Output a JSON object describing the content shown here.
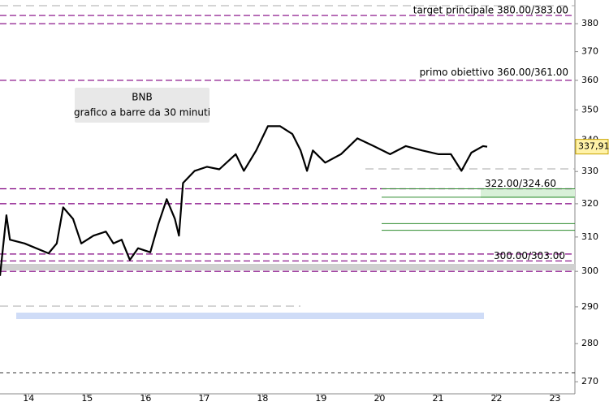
{
  "chart_data": {
    "type": "line",
    "log": true,
    "title": "BNB",
    "subtitle": "grafico a barre da 30 minuti",
    "x": [
      13.51,
      13.62,
      13.68,
      13.93,
      14.34,
      14.48,
      14.59,
      14.76,
      14.9,
      15.11,
      15.32,
      15.45,
      15.59,
      15.73,
      15.87,
      16.08,
      16.22,
      16.36,
      16.5,
      16.57,
      16.64,
      16.84,
      17.05,
      17.26,
      17.54,
      17.68,
      17.89,
      18.09,
      18.3,
      18.51,
      18.65,
      18.76,
      18.86,
      19.07,
      19.34,
      19.62,
      19.9,
      20.18,
      20.45,
      20.73,
      21.01,
      21.22,
      21.4,
      21.57,
      21.77,
      21.84
    ],
    "series": [
      {
        "name": "BNB",
        "color": "#000000",
        "values": [
          298.7,
          316.5,
          309.2,
          308.1,
          305.2,
          308.1,
          318.9,
          315.4,
          308.1,
          310.4,
          311.6,
          308.1,
          309.2,
          303.3,
          306.7,
          305.5,
          314.0,
          321.4,
          315.4,
          310.4,
          326.4,
          330.2,
          331.5,
          330.7,
          335.5,
          330.2,
          336.7,
          344.6,
          344.6,
          342.0,
          336.7,
          330.2,
          336.7,
          332.8,
          335.5,
          340.6,
          338.1,
          335.5,
          338.1,
          336.7,
          335.5,
          335.5,
          330.2,
          336.0,
          338.1,
          337.9
        ]
      }
    ],
    "xlim": [
      13.51,
      23.34
    ],
    "xticks": [
      14,
      15,
      16,
      17,
      18,
      19,
      20,
      21,
      22,
      23
    ],
    "ylim": [
      266.9,
      388.7
    ],
    "yticks": [
      270,
      280,
      290,
      300,
      310,
      320,
      330,
      340,
      350,
      360,
      370,
      380
    ],
    "last_price": {
      "value": 337.91,
      "label": "337,91"
    },
    "level_color": "#800080",
    "levels": [
      383,
      380,
      360,
      324.6,
      320,
      305,
      303,
      300
    ],
    "support_color": "#2e8b2e",
    "supports": [
      324.6,
      322,
      314,
      312
    ],
    "annotations": [
      {
        "text": "target principale 380.00/383.00",
        "value": 383
      },
      {
        "text": "primo obiettivo 360.00/361.00",
        "value": 361
      },
      {
        "text": "322.00/324.60",
        "value": 324.6
      },
      {
        "text": "300.00/303.00",
        "value": 303
      }
    ]
  }
}
